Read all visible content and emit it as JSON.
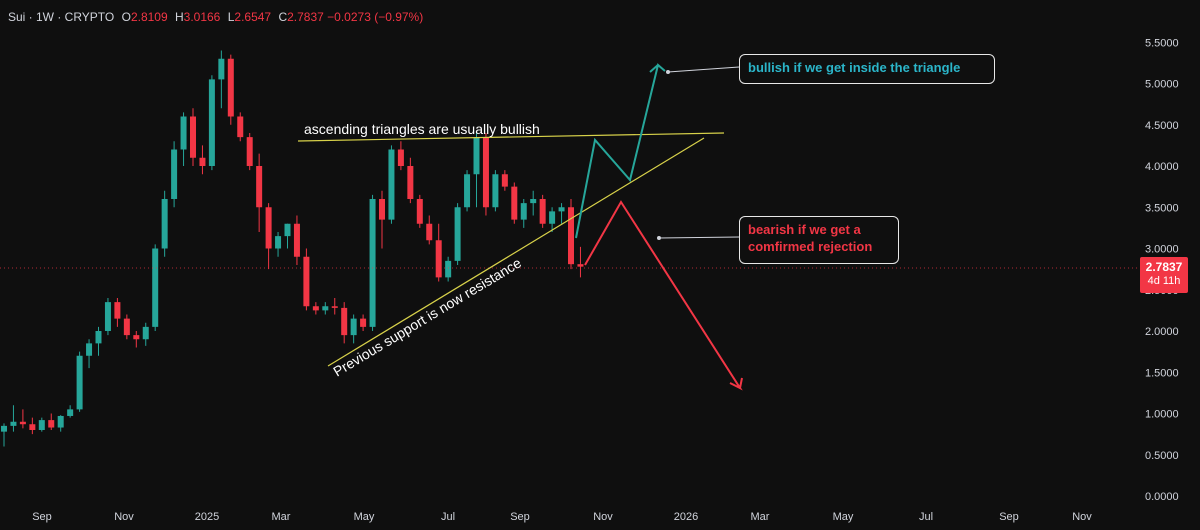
{
  "header": {
    "symbol": "Sui · 1W · CRYPTO",
    "open_label": "O",
    "open": "2.8109",
    "high_label": "H",
    "high": "3.0166",
    "low_label": "L",
    "low": "2.6547",
    "close_label": "C",
    "close": "2.7837",
    "change": "−0.0273 (−0.97%)"
  },
  "price_tag": {
    "price": "2.7837",
    "countdown": "4d 11h"
  },
  "annotations": {
    "top_line": "ascending triangles are usually bullish",
    "support_line": "Previous support is now resistance",
    "bullish_box": "bullish if we get inside the triangle",
    "bearish_box_line1": "bearish if we get a",
    "bearish_box_line2": "comfirmed rejection"
  },
  "colors": {
    "up": "#26a69a",
    "down": "#f23645",
    "trendline": "#d8d24a",
    "bull_path": "#26a69a",
    "bear_path": "#f23645"
  },
  "chart_data": {
    "type": "candlestick",
    "title": "Sui · 1W · CRYPTO",
    "y_ticks": [
      "5.5000",
      "5.0000",
      "4.5000",
      "4.0000",
      "3.5000",
      "3.0000",
      "2.5000",
      "2.0000",
      "1.5000",
      "1.0000",
      "0.5000",
      "0.0000"
    ],
    "x_ticks": [
      "Sep",
      "Nov",
      "2025",
      "Mar",
      "May",
      "Jul",
      "Sep",
      "Nov",
      "2026",
      "Mar",
      "May",
      "Jul",
      "Sep",
      "Nov"
    ],
    "ylim": [
      0,
      5.5
    ],
    "grid": false,
    "candles": [
      [
        0.78,
        0.88,
        0.6,
        0.85
      ],
      [
        0.85,
        1.1,
        0.78,
        0.9
      ],
      [
        0.9,
        1.05,
        0.82,
        0.87
      ],
      [
        0.87,
        0.95,
        0.75,
        0.8
      ],
      [
        0.8,
        0.95,
        0.78,
        0.92
      ],
      [
        0.92,
        1.0,
        0.8,
        0.83
      ],
      [
        0.83,
        0.98,
        0.78,
        0.97
      ],
      [
        0.97,
        1.1,
        0.95,
        1.05
      ],
      [
        1.05,
        1.75,
        1.02,
        1.7
      ],
      [
        1.7,
        1.9,
        1.55,
        1.85
      ],
      [
        1.85,
        2.05,
        1.7,
        2.0
      ],
      [
        2.0,
        2.4,
        1.95,
        2.35
      ],
      [
        2.35,
        2.4,
        2.05,
        2.15
      ],
      [
        2.15,
        2.2,
        1.9,
        1.95
      ],
      [
        1.95,
        2.0,
        1.8,
        1.9
      ],
      [
        1.9,
        2.1,
        1.82,
        2.05
      ],
      [
        2.05,
        3.05,
        2.0,
        3.0
      ],
      [
        3.0,
        3.7,
        2.9,
        3.6
      ],
      [
        3.6,
        4.3,
        3.5,
        4.2
      ],
      [
        4.2,
        4.65,
        4.0,
        4.6
      ],
      [
        4.6,
        4.7,
        4.0,
        4.1
      ],
      [
        4.1,
        4.25,
        3.9,
        4.0
      ],
      [
        4.0,
        5.1,
        3.95,
        5.05
      ],
      [
        5.05,
        5.4,
        4.7,
        5.3
      ],
      [
        5.3,
        5.35,
        4.5,
        4.6
      ],
      [
        4.6,
        4.65,
        4.3,
        4.35
      ],
      [
        4.35,
        4.4,
        3.95,
        4.0
      ],
      [
        4.0,
        4.15,
        3.2,
        3.5
      ],
      [
        3.5,
        3.55,
        2.75,
        3.0
      ],
      [
        3.0,
        3.2,
        2.9,
        3.15
      ],
      [
        3.15,
        3.3,
        3.0,
        3.3
      ],
      [
        3.3,
        3.4,
        2.8,
        2.9
      ],
      [
        2.9,
        3.0,
        2.25,
        2.3
      ],
      [
        2.3,
        2.35,
        2.2,
        2.25
      ],
      [
        2.25,
        2.35,
        2.2,
        2.3
      ],
      [
        2.3,
        2.4,
        2.2,
        2.28
      ],
      [
        2.28,
        2.35,
        1.85,
        1.95
      ],
      [
        1.95,
        2.2,
        1.85,
        2.15
      ],
      [
        2.15,
        2.2,
        2.0,
        2.05
      ],
      [
        2.05,
        3.65,
        2.0,
        3.6
      ],
      [
        3.6,
        3.7,
        3.0,
        3.35
      ],
      [
        3.35,
        4.25,
        3.3,
        4.2
      ],
      [
        4.2,
        4.3,
        3.95,
        4.0
      ],
      [
        4.0,
        4.1,
        3.55,
        3.6
      ],
      [
        3.6,
        3.65,
        3.25,
        3.3
      ],
      [
        3.3,
        3.4,
        3.05,
        3.1
      ],
      [
        3.1,
        3.3,
        2.6,
        2.65
      ],
      [
        2.65,
        2.9,
        2.6,
        2.85
      ],
      [
        2.85,
        3.55,
        2.8,
        3.5
      ],
      [
        3.5,
        3.95,
        3.45,
        3.9
      ],
      [
        3.9,
        4.4,
        3.5,
        4.35
      ],
      [
        4.35,
        4.4,
        3.4,
        3.5
      ],
      [
        3.5,
        3.95,
        3.45,
        3.9
      ],
      [
        3.9,
        3.95,
        3.7,
        3.75
      ],
      [
        3.75,
        3.8,
        3.3,
        3.35
      ],
      [
        3.35,
        3.6,
        3.25,
        3.55
      ],
      [
        3.55,
        3.7,
        3.4,
        3.6
      ],
      [
        3.6,
        3.65,
        3.25,
        3.3
      ],
      [
        3.3,
        3.5,
        3.2,
        3.45
      ],
      [
        3.45,
        3.55,
        3.3,
        3.5
      ],
      [
        3.5,
        3.6,
        2.75,
        2.81
      ],
      [
        2.81,
        3.02,
        2.65,
        2.78
      ]
    ]
  }
}
